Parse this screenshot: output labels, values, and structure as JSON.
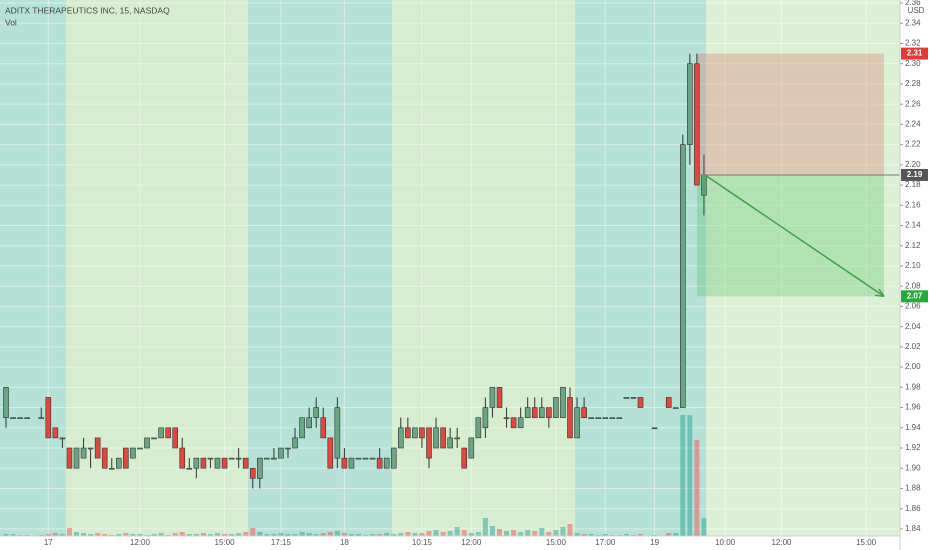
{
  "chart_data": {
    "type": "candlestick",
    "title": "ADITX THERAPEUTICS INC, 15, NASDAQ",
    "volume_label": "Vol",
    "currency": "USD",
    "up_color": "#6aa584",
    "down_color": "#e0473e",
    "wick_color": "#333333",
    "volume_up_color": "#26a69a",
    "volume_down_color": "#ef5350",
    "grid": true,
    "ylim": [
      1.833,
      2.363
    ],
    "yticks": [
      1.84,
      1.86,
      1.88,
      {
        "value": 1.9,
        "label": "1.90"
      },
      1.92,
      1.94,
      1.96,
      1.98,
      {
        "value": 2,
        "label": "2.00"
      },
      2.02,
      2.04,
      2.06,
      2.08,
      {
        "value": 2.1,
        "label": "2.10"
      },
      2.12,
      2.14,
      2.16,
      2.18,
      {
        "value": 2.2,
        "label": "2.20"
      },
      2.22,
      2.24,
      2.26,
      2.28,
      {
        "value": 2.3,
        "label": "2.30"
      },
      2.32,
      2.34,
      2.36
    ],
    "categories": [
      null,
      null,
      null,
      null,
      null,
      null,
      "17",
      null,
      null,
      null,
      null,
      null,
      null,
      null,
      null,
      null,
      null,
      null,
      null,
      "12:00",
      null,
      null,
      null,
      null,
      null,
      null,
      null,
      null,
      null,
      null,
      null,
      "15:00",
      null,
      null,
      null,
      null,
      null,
      null,
      null,
      "17:15",
      null,
      null,
      null,
      null,
      null,
      null,
      null,
      null,
      "18",
      null,
      null,
      null,
      null,
      null,
      null,
      null,
      null,
      null,
      null,
      "10:15",
      null,
      null,
      null,
      null,
      null,
      null,
      "12:00",
      null,
      null,
      null,
      null,
      null,
      null,
      null,
      null,
      null,
      null,
      null,
      "15:00",
      null,
      null,
      null,
      null,
      null,
      null,
      "17:00",
      null,
      null,
      null,
      null,
      null,
      null,
      "19",
      null,
      null,
      null,
      null,
      null,
      null,
      null,
      null,
      null,
      "10:00",
      null,
      null,
      null,
      null,
      null,
      null,
      null,
      "12:00",
      null,
      null,
      null,
      null,
      null,
      null,
      null,
      null,
      null,
      null,
      null,
      "15:00"
    ],
    "open": [
      1.95,
      1.95,
      1.95,
      1.95,
      null,
      1.95,
      1.97,
      1.94,
      1.93,
      1.92,
      1.9,
      1.91,
      1.92,
      1.93,
      1.92,
      1.9,
      1.9,
      1.92,
      1.91,
      1.92,
      1.92,
      1.93,
      1.93,
      1.94,
      1.94,
      1.92,
      1.9,
      1.9,
      1.91,
      1.91,
      1.9,
      1.91,
      1.91,
      1.91,
      1.91,
      1.9,
      1.89,
      1.91,
      1.91,
      1.91,
      1.92,
      1.92,
      1.93,
      1.94,
      1.95,
      1.95,
      1.93,
      1.91,
      1.91,
      1.9,
      1.91,
      1.91,
      1.91,
      1.91,
      1.9,
      1.9,
      1.92,
      1.94,
      1.93,
      1.94,
      1.94,
      1.92,
      1.94,
      1.92,
      1.93,
      1.92,
      1.91,
      1.93,
      1.94,
      1.96,
      1.98,
      1.95,
      1.95,
      1.94,
      1.95,
      1.96,
      1.95,
      1.96,
      1.95,
      1.95,
      1.97,
      1.93,
      1.96,
      1.95,
      1.95,
      1.95,
      1.95,
      1.95,
      1.97,
      1.97,
      1.97,
      null,
      1.94,
      null,
      1.97,
      1.96,
      1.96,
      2.22,
      2.3,
      2.17,
      null,
      null,
      null,
      null,
      null,
      null,
      null,
      null,
      null,
      null,
      null,
      null,
      null,
      null,
      null,
      null,
      null,
      null,
      null,
      null,
      null,
      null,
      null
    ],
    "high": [
      1.98,
      1.95,
      1.95,
      1.95,
      null,
      1.96,
      1.97,
      1.94,
      1.93,
      1.92,
      1.92,
      1.93,
      1.92,
      1.93,
      1.92,
      1.91,
      1.91,
      1.92,
      1.92,
      1.92,
      1.93,
      1.93,
      1.94,
      1.94,
      1.94,
      1.93,
      1.91,
      1.91,
      1.91,
      1.91,
      1.91,
      1.91,
      1.91,
      1.92,
      1.91,
      1.9,
      1.91,
      1.91,
      1.92,
      1.92,
      1.92,
      1.94,
      1.95,
      1.96,
      1.97,
      1.96,
      1.93,
      1.97,
      1.92,
      1.91,
      1.91,
      1.91,
      1.91,
      1.92,
      1.91,
      1.92,
      1.95,
      1.95,
      1.94,
      1.94,
      1.94,
      1.95,
      1.94,
      1.94,
      1.94,
      1.92,
      1.93,
      1.95,
      1.97,
      1.98,
      1.98,
      1.96,
      1.95,
      1.96,
      1.97,
      1.97,
      1.97,
      1.96,
      1.97,
      1.98,
      1.98,
      1.97,
      1.97,
      1.95,
      1.95,
      1.95,
      1.95,
      1.95,
      1.97,
      1.97,
      1.97,
      null,
      1.94,
      null,
      1.97,
      1.96,
      2.23,
      2.31,
      2.31,
      2.21,
      null,
      null,
      null,
      null,
      null,
      null,
      null,
      null,
      null,
      null,
      null,
      null,
      null,
      null,
      null,
      null,
      null,
      null,
      null,
      null,
      null,
      null,
      null
    ],
    "low": [
      1.94,
      1.95,
      1.95,
      1.95,
      null,
      1.95,
      1.93,
      1.93,
      1.92,
      1.9,
      1.9,
      1.91,
      1.9,
      1.91,
      1.9,
      1.9,
      1.9,
      1.9,
      1.91,
      1.92,
      1.92,
      1.93,
      1.93,
      1.93,
      1.92,
      1.9,
      1.9,
      1.89,
      1.9,
      1.9,
      1.9,
      1.9,
      1.91,
      1.9,
      1.9,
      1.88,
      1.88,
      1.91,
      1.91,
      1.91,
      1.91,
      1.92,
      1.93,
      1.94,
      1.94,
      1.93,
      1.9,
      1.9,
      1.9,
      1.9,
      1.91,
      1.91,
      1.91,
      1.9,
      1.9,
      1.9,
      1.92,
      1.93,
      1.93,
      1.92,
      1.9,
      1.92,
      1.92,
      1.92,
      1.92,
      1.9,
      1.91,
      1.93,
      1.93,
      1.95,
      1.96,
      1.94,
      1.94,
      1.94,
      1.95,
      1.95,
      1.95,
      1.94,
      1.95,
      1.95,
      1.93,
      1.93,
      1.95,
      1.95,
      1.95,
      1.95,
      1.95,
      1.95,
      1.97,
      1.97,
      1.96,
      null,
      1.94,
      null,
      1.96,
      1.96,
      1.96,
      2.2,
      2.18,
      2.15,
      null,
      null,
      null,
      null,
      null,
      null,
      null,
      null,
      null,
      null,
      null,
      null,
      null,
      null,
      null,
      null,
      null,
      null,
      null,
      null,
      null,
      null,
      null
    ],
    "close": [
      1.98,
      1.95,
      1.95,
      1.95,
      null,
      1.95,
      1.93,
      1.93,
      1.93,
      1.9,
      1.92,
      1.92,
      1.92,
      1.91,
      1.9,
      1.9,
      1.91,
      1.9,
      1.92,
      1.92,
      1.93,
      1.93,
      1.94,
      1.93,
      1.92,
      1.9,
      1.9,
      1.91,
      1.9,
      1.91,
      1.91,
      1.9,
      1.91,
      1.91,
      1.9,
      1.89,
      1.91,
      1.91,
      1.91,
      1.92,
      1.92,
      1.93,
      1.95,
      1.95,
      1.96,
      1.93,
      1.9,
      1.96,
      1.9,
      1.91,
      1.91,
      1.91,
      1.91,
      1.9,
      1.91,
      1.92,
      1.94,
      1.93,
      1.94,
      1.93,
      1.91,
      1.94,
      1.92,
      1.93,
      1.93,
      1.9,
      1.93,
      1.95,
      1.96,
      1.98,
      1.96,
      1.95,
      1.94,
      1.95,
      1.96,
      1.95,
      1.96,
      1.95,
      1.97,
      1.98,
      1.93,
      1.96,
      1.95,
      1.95,
      1.95,
      1.95,
      1.95,
      1.95,
      1.97,
      1.97,
      1.96,
      null,
      1.94,
      null,
      1.96,
      1.96,
      2.22,
      2.3,
      2.18,
      2.19,
      null,
      null,
      null,
      null,
      null,
      null,
      null,
      null,
      null,
      null,
      null,
      null,
      null,
      null,
      null,
      null,
      null,
      null,
      null,
      null,
      null,
      null,
      null
    ],
    "volume": [
      2,
      2,
      1,
      1,
      null,
      1,
      2,
      3,
      2,
      8,
      4,
      3,
      2,
      3,
      2,
      1,
      2,
      3,
      2,
      2,
      1,
      2,
      3,
      1,
      3,
      4,
      2,
      2,
      3,
      2,
      3,
      2,
      2,
      3,
      4,
      8,
      4,
      2,
      2,
      3,
      2,
      2,
      4,
      3,
      2,
      3,
      4,
      5,
      3,
      2,
      2,
      1,
      2,
      2,
      3,
      2,
      3,
      4,
      3,
      3,
      5,
      6,
      4,
      5,
      9,
      6,
      3,
      4,
      18,
      10,
      7,
      5,
      6,
      4,
      6,
      5,
      8,
      4,
      6,
      9,
      12,
      3,
      2,
      2,
      1,
      2,
      1,
      1,
      2,
      1,
      2,
      null,
      1,
      null,
      3,
      3,
      121,
      121,
      96,
      18,
      null,
      null,
      null,
      null,
      null,
      null,
      null,
      null,
      null,
      null,
      null,
      null,
      null,
      null,
      null,
      null,
      null,
      null,
      null,
      null,
      null,
      null,
      null
    ],
    "position": {
      "stop": 2.31,
      "entry": 2.19,
      "target": 2.07,
      "stop_color": "#e53935",
      "entry_color": "#555555",
      "target_color": "#22ab3a"
    }
  }
}
